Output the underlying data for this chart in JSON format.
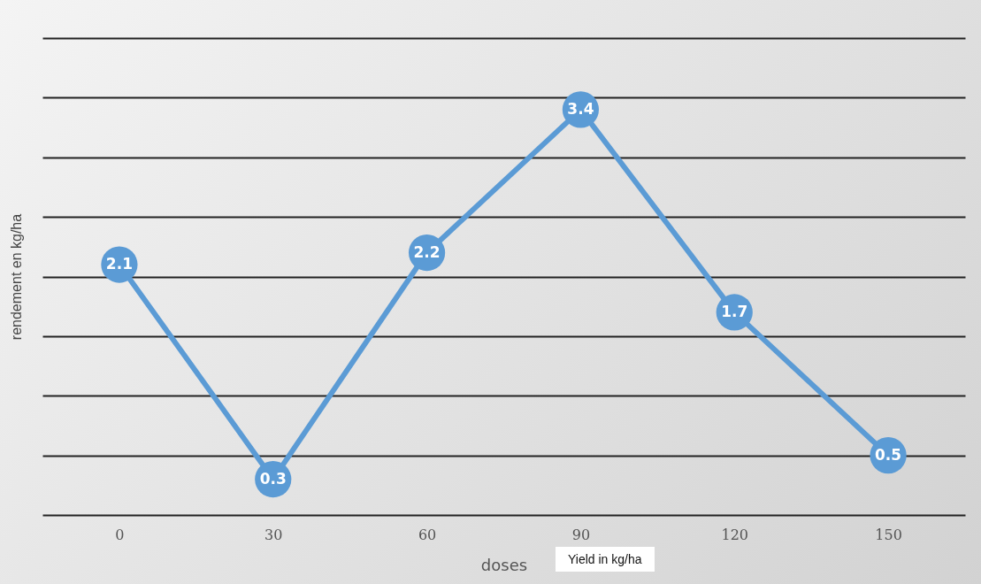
{
  "chart_data": {
    "type": "line",
    "xlabel": "doses",
    "ylabel": "rendement en kg/ha",
    "categories": [
      "0",
      "30",
      "60",
      "90",
      "120",
      "150"
    ],
    "series": [
      {
        "color": "#5b9bd5",
        "values": [
          2.1,
          0.3,
          2.2,
          3.4,
          1.7,
          0.5
        ]
      }
    ],
    "ylim": [
      0,
      4
    ],
    "yticks": [
      {
        "value": 0,
        "label": null
      },
      {
        "value": 0.5,
        "label": null
      },
      {
        "value": 1,
        "label": null
      },
      {
        "value": 1.5,
        "label": null
      },
      {
        "value": 2,
        "label": null
      },
      {
        "value": 2.5,
        "label": null
      },
      {
        "value": 3,
        "label": null
      },
      {
        "value": 3.5,
        "label": null
      },
      {
        "value": 4,
        "label": null
      }
    ],
    "grid": "y",
    "marker": "circle",
    "data_labels": true,
    "annotations": [
      "Yield in kg/ha"
    ]
  }
}
